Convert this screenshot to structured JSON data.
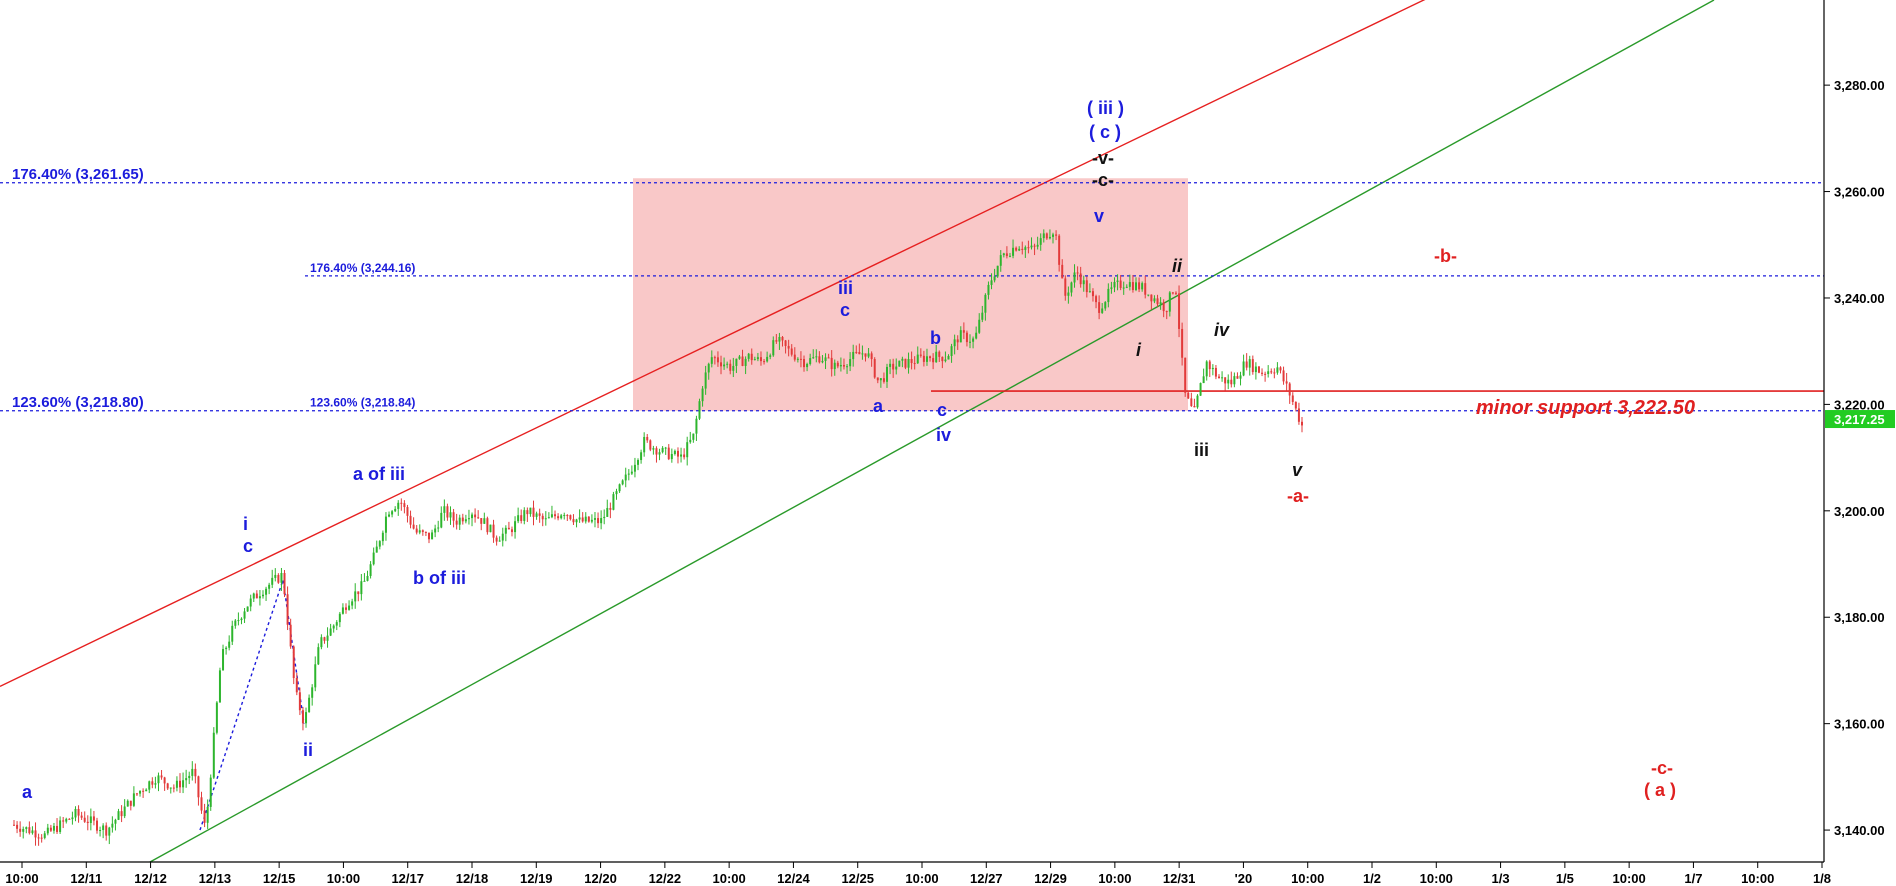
{
  "chart_data": {
    "type": "candlestick",
    "y_axis": {
      "ylim": [
        3134,
        3296
      ],
      "ticks": [
        3140,
        3160,
        3180,
        3200,
        3220,
        3240,
        3260,
        3280
      ],
      "tick_labels": [
        "3,140.00",
        "3,160.00",
        "3,180.00",
        "3,200.00",
        "3,220.00",
        "3,240.00",
        "3,260.00",
        "3,280.00"
      ],
      "last_price": 3217.25,
      "last_price_label": "3,217.25",
      "last_price_color": "#22cc22"
    },
    "x_axis": {
      "tick_labels": [
        "10:00",
        "12/11",
        "12/12",
        "12/13",
        "12/15",
        "10:00",
        "12/17",
        "12/18",
        "12/19",
        "12/20",
        "12/22",
        "10:00",
        "12/24",
        "12/25",
        "10:00",
        "12/27",
        "12/29",
        "10:00",
        "12/31",
        "'20",
        "10:00",
        "1/2",
        "10:00",
        "1/3",
        "1/5",
        "10:00",
        "1/7",
        "10:00",
        "1/8"
      ]
    },
    "fib_levels": [
      {
        "label": "176.40% (3,261.65)",
        "value": 3261.65,
        "style": "major"
      },
      {
        "label": "176.40% (3,244.16)",
        "value": 3244.16,
        "style": "minor"
      },
      {
        "label": "123.60% (3,218.80)",
        "value": 3218.8,
        "style": "major"
      },
      {
        "label": "123.60% (3,218.84)",
        "value": 3218.84,
        "style": "minor"
      }
    ],
    "support": {
      "label": "minor support 3,222.50",
      "value": 3222.5
    },
    "zone": {
      "from": 3218.8,
      "to": 3262.5
    },
    "channel_lines": [
      {
        "color": "#e62020",
        "from_value": 3167,
        "to_value": 3302
      },
      {
        "color": "#2a9a2a",
        "from_value": 3134,
        "to_value": 3296
      }
    ],
    "price_path": [
      [
        0.0,
        3141
      ],
      [
        0.5,
        3139
      ],
      [
        1.0,
        3143
      ],
      [
        1.5,
        3140
      ],
      [
        2.0,
        3147
      ],
      [
        2.3,
        3150
      ],
      [
        2.6,
        3148
      ],
      [
        2.9,
        3151
      ],
      [
        3.1,
        3140
      ],
      [
        3.35,
        3172
      ],
      [
        3.55,
        3178
      ],
      [
        3.75,
        3182
      ],
      [
        4.0,
        3185
      ],
      [
        4.35,
        3188
      ],
      [
        4.55,
        3166
      ],
      [
        4.7,
        3160
      ],
      [
        4.95,
        3175
      ],
      [
        5.15,
        3178
      ],
      [
        5.4,
        3183
      ],
      [
        5.65,
        3186
      ],
      [
        5.85,
        3192
      ],
      [
        6.05,
        3200
      ],
      [
        6.25,
        3202
      ],
      [
        6.5,
        3196
      ],
      [
        6.75,
        3195
      ],
      [
        6.95,
        3200
      ],
      [
        7.15,
        3198
      ],
      [
        7.4,
        3200
      ],
      [
        7.6,
        3198
      ],
      [
        7.8,
        3195
      ],
      [
        8.0,
        3196
      ],
      [
        8.3,
        3200
      ],
      [
        8.6,
        3198
      ],
      [
        8.9,
        3200
      ],
      [
        9.15,
        3198
      ],
      [
        9.5,
        3198
      ],
      [
        9.7,
        3202
      ],
      [
        9.95,
        3207
      ],
      [
        10.2,
        3213
      ],
      [
        10.5,
        3211
      ],
      [
        10.8,
        3210
      ],
      [
        11.0,
        3214
      ],
      [
        11.15,
        3224
      ],
      [
        11.3,
        3229
      ],
      [
        11.6,
        3227
      ],
      [
        11.9,
        3229
      ],
      [
        12.1,
        3228
      ],
      [
        12.35,
        3232
      ],
      [
        12.55,
        3230
      ],
      [
        12.8,
        3228
      ],
      [
        13.05,
        3229
      ],
      [
        13.3,
        3227
      ],
      [
        13.6,
        3229
      ],
      [
        13.8,
        3230
      ],
      [
        14.0,
        3224
      ],
      [
        14.2,
        3227
      ],
      [
        14.5,
        3228
      ],
      [
        14.8,
        3229
      ],
      [
        15.1,
        3229
      ],
      [
        15.3,
        3233
      ],
      [
        15.55,
        3232
      ],
      [
        15.8,
        3243
      ],
      [
        16.0,
        3248
      ],
      [
        16.25,
        3250
      ],
      [
        16.5,
        3249
      ],
      [
        16.7,
        3252
      ],
      [
        16.85,
        3253
      ],
      [
        17.0,
        3240
      ],
      [
        17.2,
        3245
      ],
      [
        17.35,
        3242
      ],
      [
        17.55,
        3238
      ],
      [
        17.8,
        3242
      ],
      [
        18.0,
        3243
      ],
      [
        18.25,
        3242
      ],
      [
        18.45,
        3240
      ],
      [
        18.65,
        3238
      ],
      [
        18.8,
        3243
      ],
      [
        18.95,
        3222
      ],
      [
        19.1,
        3218
      ],
      [
        19.3,
        3228
      ],
      [
        19.5,
        3225
      ],
      [
        19.7,
        3224
      ],
      [
        19.95,
        3228
      ],
      [
        20.2,
        3226
      ],
      [
        20.45,
        3227
      ],
      [
        20.65,
        3222
      ],
      [
        20.85,
        3216
      ]
    ],
    "series_color_up": "#2db52d",
    "series_color_down": "#e23a3a"
  },
  "annotations": {
    "blue_a": "a",
    "blue_i": "i",
    "blue_c1": "c",
    "blue_ii": "ii",
    "blue_a_of_iii": "a of iii",
    "blue_b_of_iii": "b of iii",
    "blue_iii": "iii",
    "blue_c2": "c",
    "blue_a2": "a",
    "blue_b": "b",
    "blue_c3": "c",
    "blue_iv": "iv",
    "blue_v": "v",
    "blue_iii_paren": "( iii )",
    "blue_c_paren": "( c )",
    "black_v": "-v-",
    "black_c": "-c-",
    "black_ii": "ii",
    "black_i": "i",
    "black_iii": "iii",
    "black_iv": "iv",
    "black_v_small": "v",
    "red_a": "-a-",
    "red_b": "-b-",
    "red_c": "-c-",
    "red_a_paren": "( a )"
  },
  "colors": {
    "blue": "#1c1cdc",
    "red": "#e02020",
    "black": "#111111",
    "zone": "#f9c8c8",
    "fib_line": "#1c1cdc"
  }
}
